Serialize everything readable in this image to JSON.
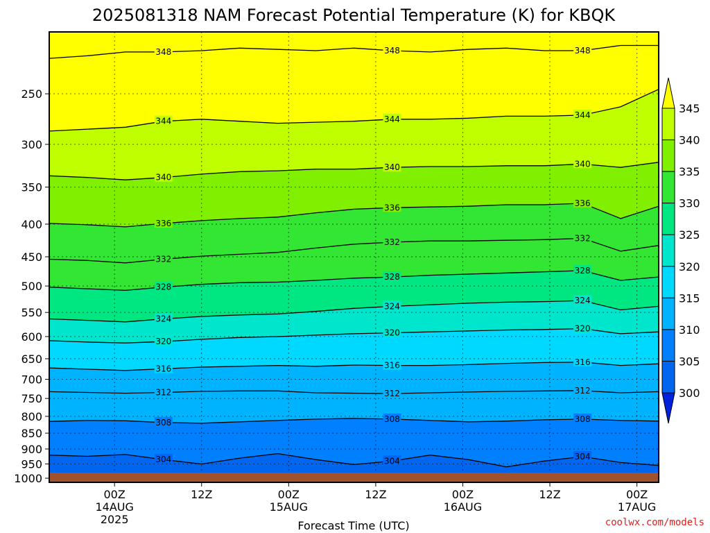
{
  "chart_data": {
    "type": "heatmap",
    "title": "2025081318 NAM Forecast Potential Temperature (K) for KBQK",
    "xlabel": "Forecast Time (UTC)",
    "ylabel": "",
    "y_scale": "log",
    "y_reversed": true,
    "y_range_hpa": [
      1015,
      200
    ],
    "y_ticks": [
      250,
      300,
      350,
      400,
      450,
      500,
      550,
      600,
      650,
      700,
      750,
      800,
      850,
      900,
      950,
      1000
    ],
    "y_tick_labels": [
      "250",
      "300",
      "350",
      "400",
      "450",
      "500",
      "550",
      "600",
      "650",
      "700",
      "750",
      "800",
      "850",
      "900",
      "950",
      "1000"
    ],
    "x_range_hours": [
      -9,
      75
    ],
    "x_ticks": [
      {
        "hour": 0,
        "label": "00Z",
        "sub": "14AUG",
        "sub2": "2025"
      },
      {
        "hour": 12,
        "label": "12Z",
        "sub": "",
        "sub2": ""
      },
      {
        "hour": 24,
        "label": "00Z",
        "sub": "15AUG",
        "sub2": ""
      },
      {
        "hour": 36,
        "label": "12Z",
        "sub": "",
        "sub2": ""
      },
      {
        "hour": 48,
        "label": "00Z",
        "sub": "16AUG",
        "sub2": ""
      },
      {
        "hour": 60,
        "label": "12Z",
        "sub": "",
        "sub2": ""
      },
      {
        "hour": 72,
        "label": "00Z",
        "sub": "17AUG",
        "sub2": ""
      }
    ],
    "grid": true,
    "colorbar": {
      "position": "right",
      "labels": [
        "345",
        "340",
        "335",
        "330",
        "325",
        "320",
        "315",
        "310",
        "305",
        "300"
      ],
      "bins": [
        {
          "min": 345,
          "color": "#ffff00"
        },
        {
          "min": 340,
          "color": "#bfff00"
        },
        {
          "min": 335,
          "color": "#80f000"
        },
        {
          "min": 330,
          "color": "#33e633"
        },
        {
          "min": 325,
          "color": "#00e680"
        },
        {
          "min": 320,
          "color": "#00e6cc"
        },
        {
          "min": 315,
          "color": "#00d9ff"
        },
        {
          "min": 310,
          "color": "#00b3ff"
        },
        {
          "min": 305,
          "color": "#0080ff"
        },
        {
          "min": 300,
          "color": "#0066f0"
        },
        {
          "min": 0,
          "color": "#0022dd"
        }
      ]
    },
    "ground_color": "#a0522d",
    "contour_interval_k": 2,
    "levels": [
      {
        "theta": 348,
        "label": "348",
        "p": [
          220,
          218,
          215,
          215,
          214,
          212,
          213,
          214,
          212,
          214,
          215,
          213,
          212,
          214,
          214,
          210,
          210
        ]
      },
      {
        "theta": 344,
        "label": "344",
        "p": [
          286,
          284,
          282,
          276,
          274,
          276,
          278,
          277,
          276,
          274,
          274,
          273,
          271,
          271,
          270,
          262,
          246
        ]
      },
      {
        "theta": 340,
        "label": "340",
        "p": [
          336,
          338,
          341,
          338,
          334,
          331,
          330,
          328,
          328,
          326,
          325,
          325,
          324,
          324,
          322,
          326,
          320
        ]
      },
      {
        "theta": 336,
        "label": "336",
        "p": [
          399,
          401,
          404,
          399,
          395,
          392,
          390,
          384,
          379,
          377,
          376,
          375,
          373,
          373,
          371,
          392,
          375
        ]
      },
      {
        "theta": 332,
        "label": "332",
        "p": [
          454,
          456,
          460,
          454,
          449,
          446,
          443,
          436,
          430,
          427,
          425,
          425,
          424,
          423,
          421,
          441,
          432
        ]
      },
      {
        "theta": 328,
        "label": "328",
        "p": [
          502,
          505,
          508,
          502,
          497,
          494,
          493,
          490,
          486,
          484,
          481,
          479,
          477,
          475,
          473,
          490,
          484
        ]
      },
      {
        "theta": 324,
        "label": "324",
        "p": [
          563,
          566,
          569,
          563,
          558,
          555,
          553,
          548,
          542,
          538,
          535,
          532,
          530,
          529,
          527,
          545,
          538
        ]
      },
      {
        "theta": 320,
        "label": "320",
        "p": [
          609,
          612,
          614,
          611,
          606,
          602,
          600,
          597,
          594,
          592,
          590,
          588,
          586,
          585,
          583,
          594,
          590
        ]
      },
      {
        "theta": 316,
        "label": "316",
        "p": [
          672,
          675,
          678,
          674,
          670,
          668,
          666,
          668,
          665,
          666,
          666,
          664,
          661,
          659,
          658,
          666,
          662
        ]
      },
      {
        "theta": 312,
        "label": "312",
        "p": [
          732,
          734,
          736,
          734,
          731,
          730,
          730,
          735,
          736,
          737,
          735,
          733,
          731,
          730,
          729,
          735,
          732
        ]
      },
      {
        "theta": 308,
        "label": "308",
        "p": [
          815,
          812,
          813,
          818,
          820,
          816,
          812,
          808,
          806,
          808,
          812,
          816,
          814,
          810,
          808,
          812,
          814
        ]
      },
      {
        "theta": 304,
        "label": "304",
        "p": [
          920,
          924,
          918,
          935,
          950,
          930,
          915,
          935,
          952,
          940,
          920,
          935,
          960,
          940,
          925,
          945,
          955
        ]
      }
    ],
    "annotations": [
      "348",
      "344",
      "344",
      "344",
      "340",
      "340",
      "340",
      "336",
      "336",
      "332",
      "332",
      "332",
      "328",
      "328",
      "328",
      "324",
      "324",
      "324",
      "320",
      "320",
      "316",
      "316",
      "316",
      "312",
      "312",
      "312",
      "308",
      "308",
      "308",
      "304",
      "304"
    ]
  },
  "watermark": "coolwx.com/models"
}
